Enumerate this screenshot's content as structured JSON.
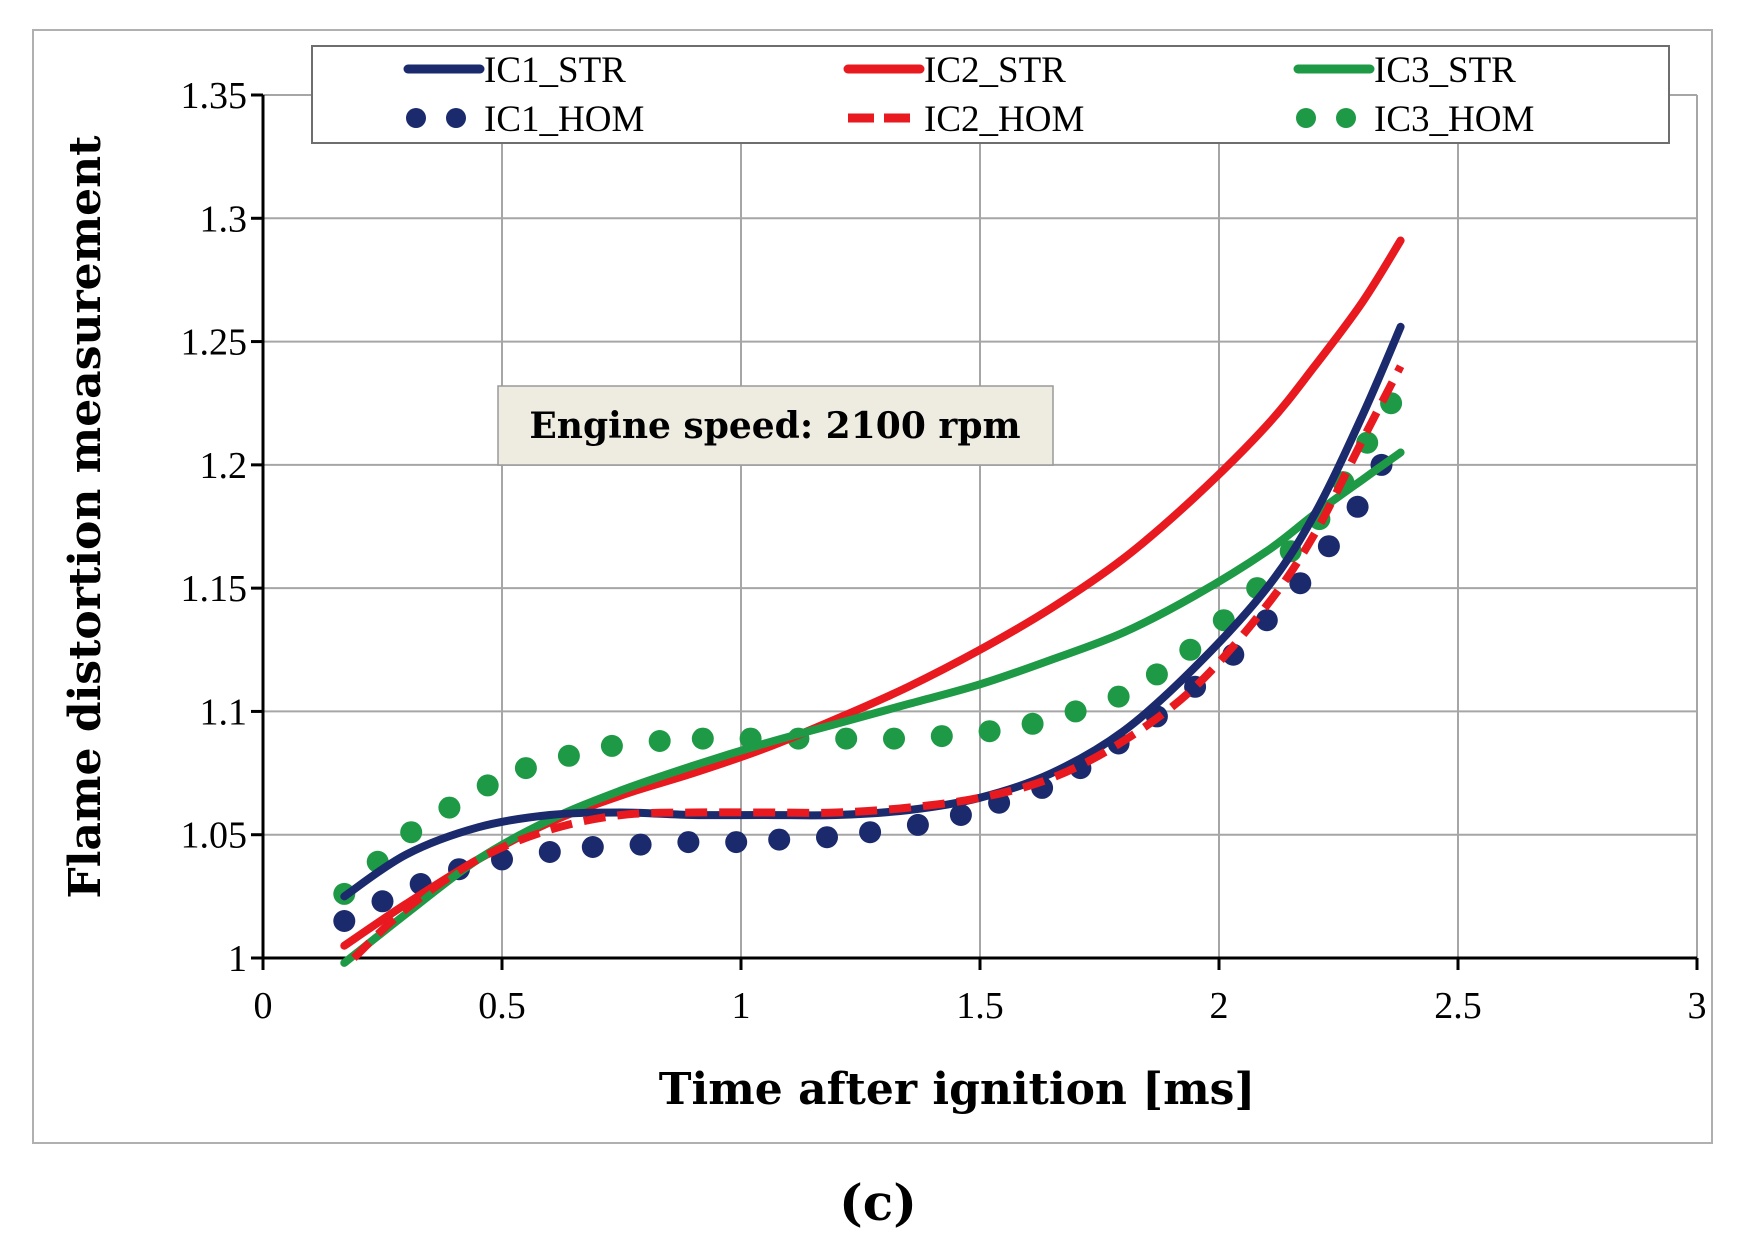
{
  "chart_data": {
    "type": "line",
    "title": "",
    "xlabel": "Time after ignition  [ms]",
    "ylabel": "Flame distortion measurement",
    "xlim": [
      0,
      3
    ],
    "ylim": [
      1,
      1.35
    ],
    "xticks": [
      0,
      0.5,
      1,
      1.5,
      2,
      2.5,
      3
    ],
    "yticks": [
      1,
      1.05,
      1.1,
      1.15,
      1.2,
      1.25,
      1.3,
      1.35
    ],
    "xtick_labels": [
      "0",
      "0.5",
      "1",
      "1.5",
      "2",
      "2.5",
      "3"
    ],
    "ytick_labels": [
      "1",
      "1.05",
      "1.1",
      "1.15",
      "1.2",
      "1.25",
      "1.3",
      "1.35"
    ],
    "grid": true,
    "legend_position": "top",
    "annotation": "Engine speed: 2100 rpm",
    "caption": "(c)",
    "series": [
      {
        "name": "IC1_STR",
        "color": "#1a2a6c",
        "style": "solid",
        "x": [
          0.17,
          0.3,
          0.45,
          0.6,
          0.75,
          0.9,
          1.05,
          1.2,
          1.35,
          1.5,
          1.65,
          1.8,
          1.95,
          2.1,
          2.2,
          2.3,
          2.38
        ],
        "y": [
          1.025,
          1.042,
          1.053,
          1.058,
          1.059,
          1.058,
          1.058,
          1.058,
          1.06,
          1.065,
          1.075,
          1.092,
          1.118,
          1.15,
          1.18,
          1.22,
          1.256
        ]
      },
      {
        "name": "IC2_STR",
        "color": "#e8191f",
        "style": "solid",
        "x": [
          0.17,
          0.3,
          0.45,
          0.6,
          0.75,
          0.9,
          1.05,
          1.2,
          1.35,
          1.5,
          1.65,
          1.8,
          1.95,
          2.1,
          2.2,
          2.3,
          2.38
        ],
        "y": [
          1.005,
          1.022,
          1.04,
          1.055,
          1.066,
          1.075,
          1.085,
          1.097,
          1.11,
          1.125,
          1.142,
          1.162,
          1.187,
          1.216,
          1.24,
          1.266,
          1.291
        ]
      },
      {
        "name": "IC3_STR",
        "color": "#1e9a46",
        "style": "solid",
        "x": [
          0.17,
          0.3,
          0.45,
          0.6,
          0.75,
          0.9,
          1.05,
          1.2,
          1.35,
          1.5,
          1.65,
          1.8,
          1.95,
          2.1,
          2.2,
          2.3,
          2.38
        ],
        "y": [
          0.998,
          1.018,
          1.04,
          1.056,
          1.068,
          1.078,
          1.087,
          1.095,
          1.103,
          1.111,
          1.121,
          1.132,
          1.147,
          1.165,
          1.18,
          1.194,
          1.205
        ]
      },
      {
        "name": "IC1_HOM",
        "color": "#1a2a6c",
        "style": "dots",
        "x": [
          0.17,
          0.25,
          0.33,
          0.41,
          0.5,
          0.6,
          0.69,
          0.79,
          0.89,
          0.99,
          1.08,
          1.18,
          1.27,
          1.37,
          1.46,
          1.54,
          1.63,
          1.71,
          1.79,
          1.87,
          1.95,
          2.03,
          2.1,
          2.17,
          2.23,
          2.29,
          2.34
        ],
        "y": [
          1.015,
          1.023,
          1.03,
          1.036,
          1.04,
          1.043,
          1.045,
          1.046,
          1.047,
          1.047,
          1.048,
          1.049,
          1.051,
          1.054,
          1.058,
          1.063,
          1.069,
          1.077,
          1.087,
          1.098,
          1.11,
          1.123,
          1.137,
          1.152,
          1.167,
          1.183,
          1.2
        ]
      },
      {
        "name": "IC2_HOM",
        "color": "#e8191f",
        "style": "dashed",
        "x": [
          0.19,
          0.3,
          0.45,
          0.6,
          0.75,
          0.9,
          1.05,
          1.2,
          1.35,
          1.5,
          1.65,
          1.8,
          1.95,
          2.1,
          2.2,
          2.3,
          2.38
        ],
        "y": [
          1.0,
          1.02,
          1.04,
          1.052,
          1.058,
          1.059,
          1.059,
          1.059,
          1.061,
          1.065,
          1.073,
          1.088,
          1.11,
          1.143,
          1.172,
          1.21,
          1.24
        ]
      },
      {
        "name": "IC3_HOM",
        "color": "#1e9a46",
        "style": "dots",
        "x": [
          0.17,
          0.24,
          0.31,
          0.39,
          0.47,
          0.55,
          0.64,
          0.73,
          0.83,
          0.92,
          1.02,
          1.12,
          1.22,
          1.32,
          1.42,
          1.52,
          1.61,
          1.7,
          1.79,
          1.87,
          1.94,
          2.01,
          2.08,
          2.15,
          2.21,
          2.26,
          2.31,
          2.36
        ],
        "y": [
          1.026,
          1.039,
          1.051,
          1.061,
          1.07,
          1.077,
          1.082,
          1.086,
          1.088,
          1.089,
          1.089,
          1.089,
          1.089,
          1.089,
          1.09,
          1.092,
          1.095,
          1.1,
          1.106,
          1.115,
          1.125,
          1.137,
          1.15,
          1.165,
          1.178,
          1.193,
          1.209,
          1.225
        ]
      }
    ]
  }
}
